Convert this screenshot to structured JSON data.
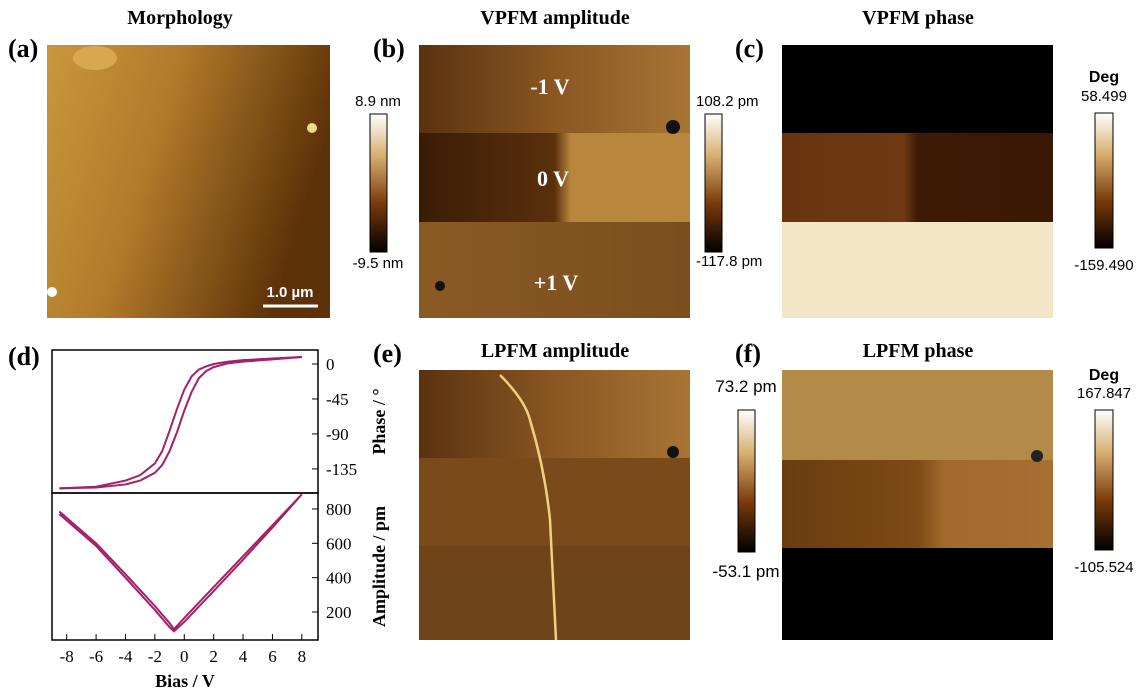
{
  "panels": [
    {
      "label": "(a)",
      "title": "Morphology",
      "scale_bar": "1.0 µm",
      "colorbar": {
        "max": "8.9 nm",
        "min": "-9.5 nm"
      }
    },
    {
      "label": "(b)",
      "title": "VPFM amplitude",
      "annotations": [
        "-1 V",
        "0 V",
        "+1 V"
      ],
      "colorbar": {
        "max": "108.2 pm",
        "min": "-117.8 pm"
      }
    },
    {
      "label": "(c)",
      "title": "VPFM phase",
      "colorbar": {
        "unit": "Deg",
        "max": "58.499",
        "min": "-159.490"
      }
    },
    {
      "label": "(e)",
      "title": "LPFM amplitude",
      "colorbar": {
        "max": "73.2 pm",
        "min": "-53.1 pm"
      }
    },
    {
      "label": "(f)",
      "title": "LPFM phase",
      "colorbar": {
        "unit": "Deg",
        "max": "167.847",
        "min": "-105.524"
      }
    }
  ],
  "chart_panel_label": "(d)",
  "chart_data": [
    {
      "type": "line",
      "ylabel": "Phase / °",
      "x": [
        -8.5,
        -6,
        -4,
        -3,
        -2,
        -1.5,
        -1,
        -0.5,
        0,
        0.5,
        1,
        1.5,
        2,
        3,
        4,
        6,
        8
      ],
      "xlim": [
        -9,
        9.1
      ],
      "ylim": [
        -166,
        18
      ],
      "yticks": [
        0,
        -45,
        -90,
        -135
      ],
      "series": [
        {
          "color": "#a3206a",
          "values": [
            -160,
            -159,
            -155,
            -150,
            -140,
            -130,
            -112,
            -88,
            -60,
            -36,
            -18,
            -9,
            -4,
            1,
            3,
            6,
            9
          ]
        },
        {
          "color": "#a3206a",
          "values": [
            -160,
            -158,
            -150,
            -143,
            -128,
            -112,
            -86,
            -58,
            -33,
            -16,
            -7,
            -3,
            0,
            3,
            5,
            7,
            9
          ]
        }
      ]
    },
    {
      "type": "line",
      "ylabel": "Amplitude / pm",
      "xlabel": "Bias / V",
      "x": [
        -8.5,
        -6,
        -4,
        -2,
        -1,
        -0.7,
        0,
        2,
        4,
        6,
        8
      ],
      "xlim": [
        -9,
        9.1
      ],
      "ylim": [
        37,
        893
      ],
      "yticks": [
        200,
        400,
        600,
        800
      ],
      "xticks": [
        -8,
        -6,
        -4,
        -2,
        0,
        2,
        4,
        6,
        8
      ],
      "series": [
        {
          "color": "#a3206a",
          "values": [
            785,
            600,
            420,
            235,
            135,
            100,
            165,
            345,
            525,
            705,
            885
          ]
        },
        {
          "color": "#a3206a",
          "values": [
            770,
            585,
            400,
            212,
            112,
            88,
            142,
            322,
            505,
            692,
            885
          ]
        }
      ]
    }
  ]
}
